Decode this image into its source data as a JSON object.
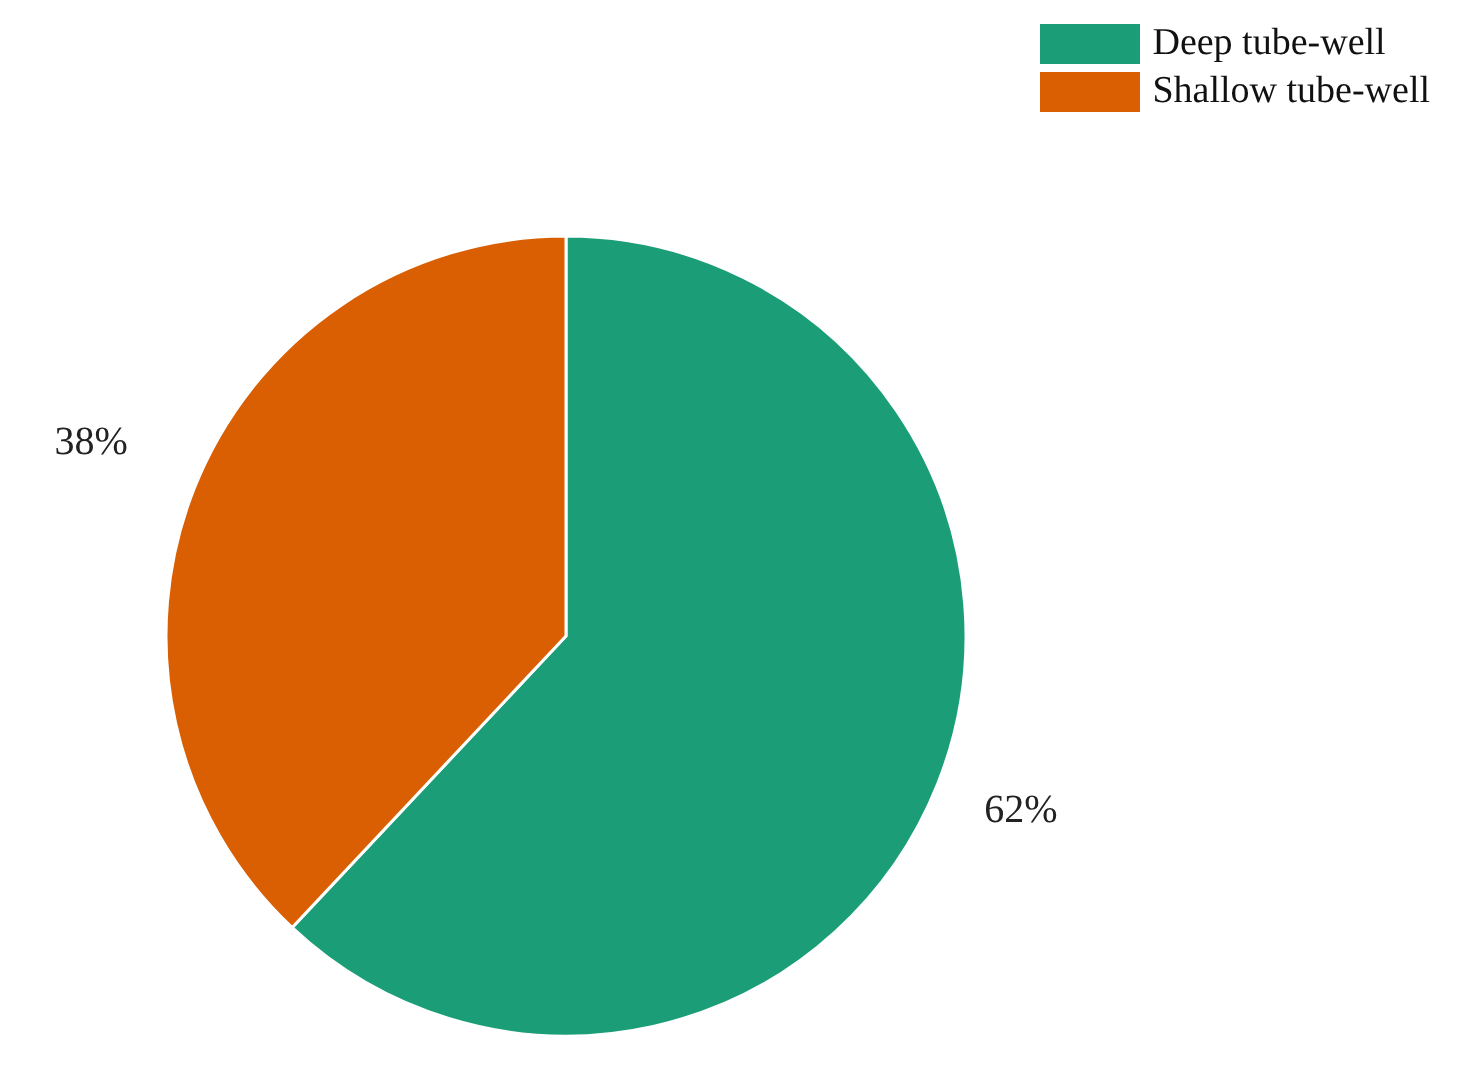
{
  "chart_data": {
    "type": "pie",
    "categories": [
      "Deep tube-well",
      "Shallow tube-well"
    ],
    "values": [
      62,
      38
    ],
    "colors": [
      "#1b9e77",
      "#d95f02"
    ],
    "value_labels": [
      "62%",
      "38%"
    ],
    "legend": "top right"
  }
}
